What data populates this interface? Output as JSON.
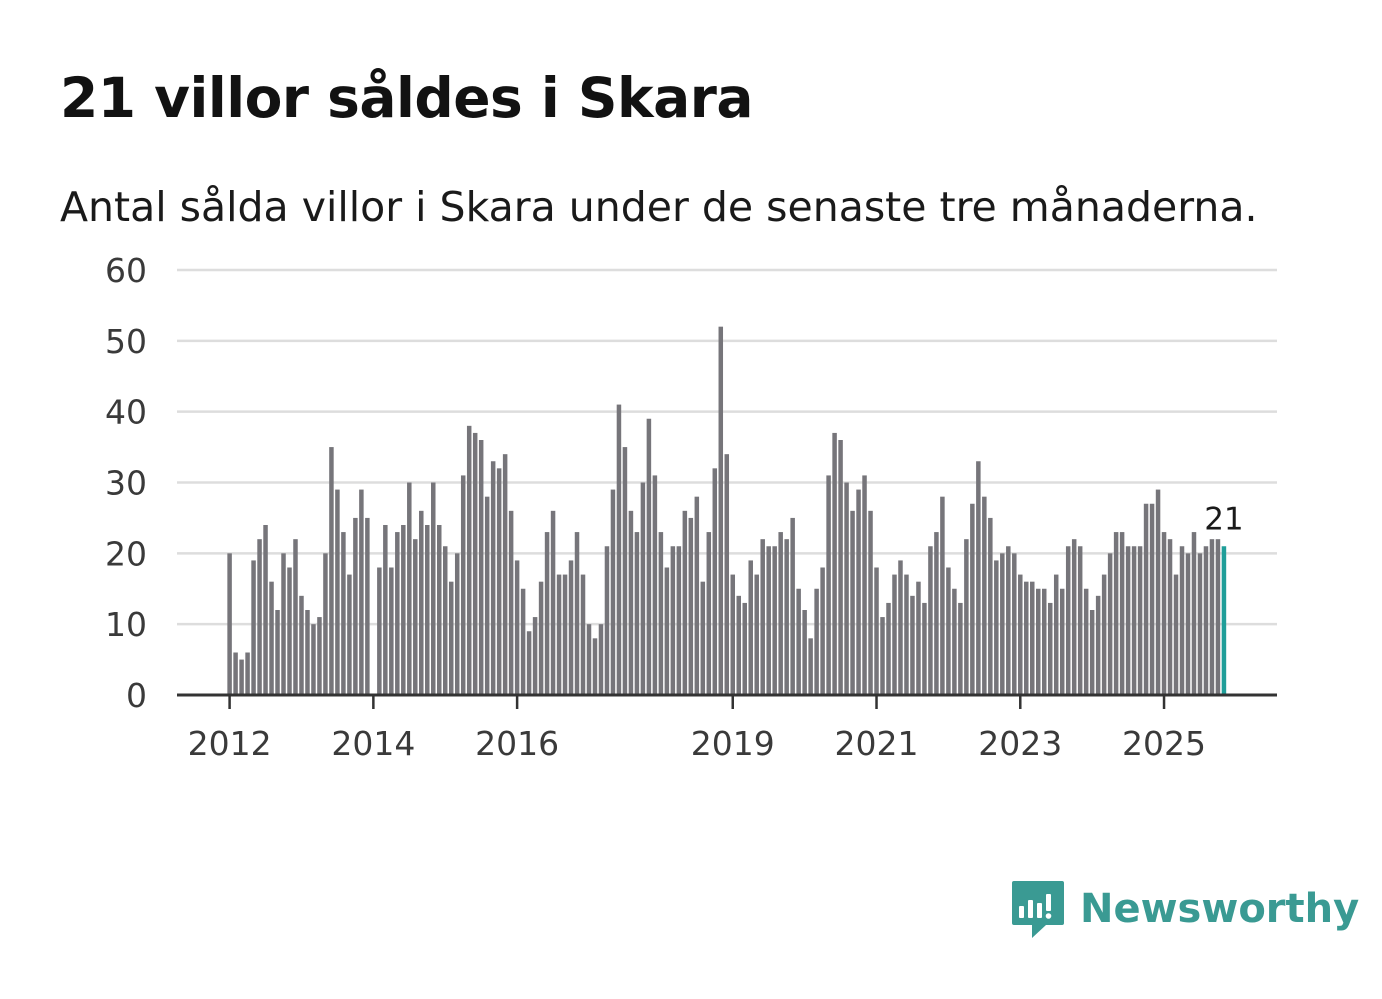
{
  "title": "21 villor såldes i Skara",
  "subtitle": "Antal sålda villor i Skara under de senaste tre månaderna.",
  "brand": {
    "name": "Newsworthy",
    "color": "#3a9a93"
  },
  "colors": {
    "bar": "#76757a",
    "highlight": "#1f9e99",
    "grid": "#dddddd",
    "axis": "#333333"
  },
  "chart_data": {
    "type": "bar",
    "title": "21 villor såldes i Skara",
    "xlabel": "",
    "ylabel": "",
    "ylim": [
      0,
      60
    ],
    "yticks": [
      0,
      10,
      20,
      30,
      40,
      50,
      60
    ],
    "grid": true,
    "start": "2012-01",
    "frequency": "monthly",
    "xticks": [
      {
        "label": "2012",
        "index": 0
      },
      {
        "label": "2014",
        "index": 24
      },
      {
        "label": "2016",
        "index": 48
      },
      {
        "label": "2019",
        "index": 84
      },
      {
        "label": "2021",
        "index": 108
      },
      {
        "label": "2023",
        "index": 132
      },
      {
        "label": "2025",
        "index": 156
      }
    ],
    "values": [
      20,
      6,
      5,
      6,
      19,
      22,
      24,
      16,
      12,
      20,
      18,
      22,
      14,
      12,
      10,
      11,
      20,
      35,
      29,
      23,
      17,
      25,
      29,
      25,
      0,
      18,
      24,
      18,
      23,
      24,
      30,
      22,
      26,
      24,
      30,
      24,
      21,
      16,
      20,
      31,
      38,
      37,
      36,
      28,
      33,
      32,
      34,
      26,
      19,
      15,
      9,
      11,
      16,
      23,
      26,
      17,
      17,
      19,
      23,
      17,
      10,
      8,
      10,
      21,
      29,
      41,
      35,
      26,
      23,
      30,
      39,
      31,
      23,
      18,
      21,
      21,
      26,
      25,
      28,
      16,
      23,
      32,
      52,
      34,
      17,
      14,
      13,
      19,
      17,
      22,
      21,
      21,
      23,
      22,
      25,
      15,
      12,
      8,
      15,
      18,
      31,
      37,
      36,
      30,
      26,
      29,
      31,
      26,
      18,
      11,
      13,
      17,
      19,
      17,
      14,
      16,
      13,
      21,
      23,
      28,
      18,
      15,
      13,
      22,
      27,
      33,
      28,
      25,
      19,
      20,
      21,
      20,
      17,
      16,
      16,
      15,
      15,
      13,
      17,
      15,
      21,
      22,
      21,
      15,
      12,
      14,
      17,
      20,
      23,
      23,
      21,
      21,
      21,
      27,
      27,
      29,
      23,
      22,
      17,
      21,
      20,
      23,
      20,
      21,
      22,
      22,
      21
    ],
    "highlight": {
      "index": 166,
      "label": "21"
    }
  }
}
